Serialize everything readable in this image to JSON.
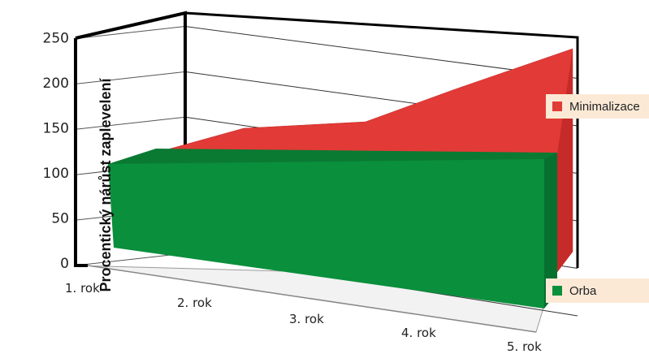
{
  "chart_data": {
    "type": "area",
    "title": "",
    "ylabel": "Procentický nárůst zaplevelení",
    "xlabel": "",
    "categories": [
      "1. rok",
      "2. rok",
      "3. rok",
      "4. rok",
      "5. rok"
    ],
    "ylim": [
      0,
      250
    ],
    "yticks": [
      "0",
      "50",
      "100",
      "150",
      "200",
      "250"
    ],
    "series": [
      {
        "name": "Orba",
        "color": "#0a8f3c",
        "values": [
          100,
          100,
          100,
          100,
          100
        ]
      },
      {
        "name": "Minimalizace",
        "color": "#e23a36",
        "values": [
          100,
          130,
          135,
          175,
          230
        ]
      }
    ],
    "grid": true,
    "legend": "right"
  }
}
